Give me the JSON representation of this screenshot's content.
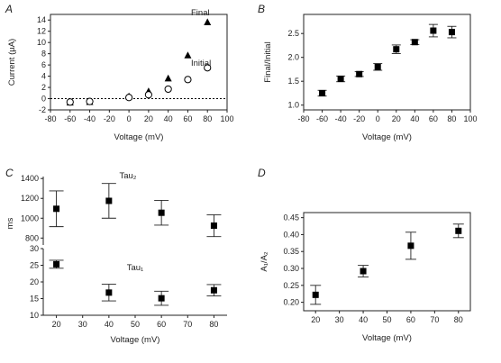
{
  "figure": {
    "panels": {
      "A": {
        "letter": "A"
      },
      "B": {
        "letter": "B"
      },
      "C": {
        "letter": "C"
      },
      "D": {
        "letter": "D"
      }
    }
  },
  "chart_data": [
    {
      "id": "A",
      "type": "scatter",
      "xlabel": "Voltage (mV)",
      "ylabel": "Current (µA)",
      "xlim": [
        -80,
        100
      ],
      "ylim": [
        -2,
        15
      ],
      "xticks": [
        -80,
        -60,
        -40,
        -20,
        0,
        20,
        40,
        60,
        80,
        100
      ],
      "yticks": [
        -2,
        0,
        2,
        4,
        6,
        8,
        10,
        12,
        14
      ],
      "zero_line": "dashed",
      "series": [
        {
          "name": "Final",
          "marker": "filled-triangle",
          "x": [
            -60,
            -40,
            0,
            20,
            40,
            60,
            80
          ],
          "y": [
            -0.7,
            -0.6,
            0.4,
            1.3,
            3.6,
            7.7,
            13.6
          ]
        },
        {
          "name": "Initial",
          "marker": "open-circle",
          "x": [
            -60,
            -40,
            0,
            20,
            40,
            60,
            80
          ],
          "y": [
            -0.6,
            -0.5,
            0.2,
            0.7,
            1.7,
            3.4,
            5.5
          ]
        }
      ]
    },
    {
      "id": "B",
      "type": "scatter",
      "xlabel": "Voltage (mV)",
      "ylabel": "Final/Initial",
      "xlim": [
        -80,
        100
      ],
      "ylim": [
        0.9,
        2.9
      ],
      "xticks": [
        -80,
        -60,
        -40,
        -20,
        0,
        20,
        40,
        60,
        80,
        100
      ],
      "yticks": [
        1.0,
        1.5,
        2.0,
        2.5
      ],
      "series": [
        {
          "marker": "filled-square",
          "x": [
            -60,
            -40,
            -20,
            0,
            20,
            40,
            60,
            80
          ],
          "y": [
            1.25,
            1.55,
            1.65,
            1.8,
            2.17,
            2.32,
            2.56,
            2.53
          ],
          "err": [
            0.06,
            0.06,
            0.05,
            0.07,
            0.09,
            0.05,
            0.13,
            0.12
          ]
        }
      ]
    },
    {
      "id": "C-top",
      "type": "scatter",
      "title": "Tau₂",
      "ylabel": "ms",
      "xlim": [
        15,
        85
      ],
      "ylim": [
        730,
        1420
      ],
      "yticks": [
        800,
        1000,
        1200,
        1400
      ],
      "series": [
        {
          "marker": "filled-square",
          "x": [
            20,
            40,
            60,
            80
          ],
          "y": [
            1095,
            1175,
            1055,
            925
          ],
          "err": [
            180,
            175,
            125,
            110
          ]
        }
      ]
    },
    {
      "id": "C-bottom",
      "type": "scatter",
      "title": "Tau₁",
      "xlabel": "Voltage (mV)",
      "xlim": [
        15,
        85
      ],
      "ylim": [
        10,
        30
      ],
      "xticks": [
        20,
        30,
        40,
        50,
        60,
        70,
        80
      ],
      "yticks": [
        10,
        15,
        20,
        25,
        30
      ],
      "series": [
        {
          "marker": "filled-square",
          "x": [
            20,
            40,
            60,
            80
          ],
          "y": [
            25.3,
            16.8,
            15.1,
            17.5
          ],
          "err": [
            1.2,
            2.5,
            2.1,
            1.7
          ]
        }
      ]
    },
    {
      "id": "D",
      "type": "scatter",
      "xlabel": "Voltage (mV)",
      "ylabel": "A₁/A₂",
      "xlim": [
        15,
        85
      ],
      "ylim": [
        0.175,
        0.465
      ],
      "xticks": [
        20,
        30,
        40,
        50,
        60,
        70,
        80
      ],
      "yticks": [
        0.2,
        0.25,
        0.3,
        0.35,
        0.4,
        0.45
      ],
      "series": [
        {
          "marker": "filled-square",
          "x": [
            20,
            40,
            60,
            80
          ],
          "y": [
            0.222,
            0.292,
            0.367,
            0.411
          ],
          "err": [
            0.028,
            0.017,
            0.04,
            0.02
          ]
        }
      ]
    }
  ]
}
